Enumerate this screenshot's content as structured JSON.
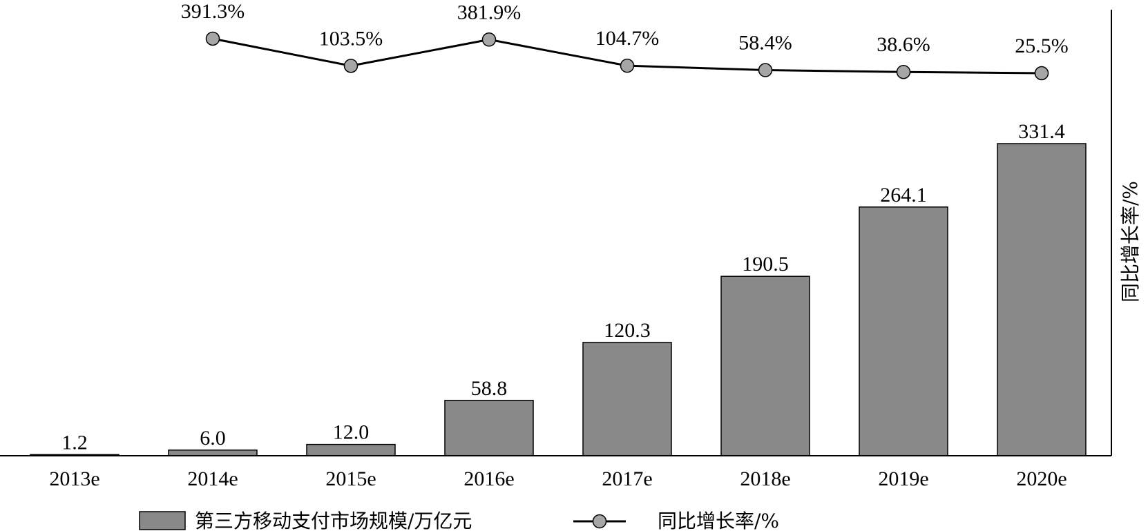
{
  "chart_data": {
    "type": "bar",
    "categories": [
      "2013e",
      "2014e",
      "2015e",
      "2016e",
      "2017e",
      "2018e",
      "2019e",
      "2020e"
    ],
    "series": [
      {
        "name": "第三方移动支付市场规模/万亿元",
        "type": "bar",
        "axis": "left",
        "values": [
          1.2,
          6.0,
          12.0,
          58.8,
          120.3,
          190.5,
          264.1,
          331.4
        ],
        "labels": [
          "1.2",
          "6.0",
          "12.0",
          "58.8",
          "120.3",
          "190.5",
          "264.1",
          "331.4"
        ]
      },
      {
        "name": "同比增长率/%",
        "type": "line",
        "axis": "right",
        "values": [
          null,
          391.3,
          103.5,
          381.9,
          104.7,
          58.4,
          38.6,
          25.5
        ],
        "labels": [
          "",
          "391.3%",
          "103.5%",
          "381.9%",
          "104.7%",
          "58.4%",
          "38.6%",
          "25.5%"
        ]
      }
    ],
    "y_right_label": "同比增长率/%",
    "legend_position": "bottom",
    "colors": {
      "bar": "#898989",
      "line": "#000000",
      "marker": "#a6a6a6"
    }
  }
}
